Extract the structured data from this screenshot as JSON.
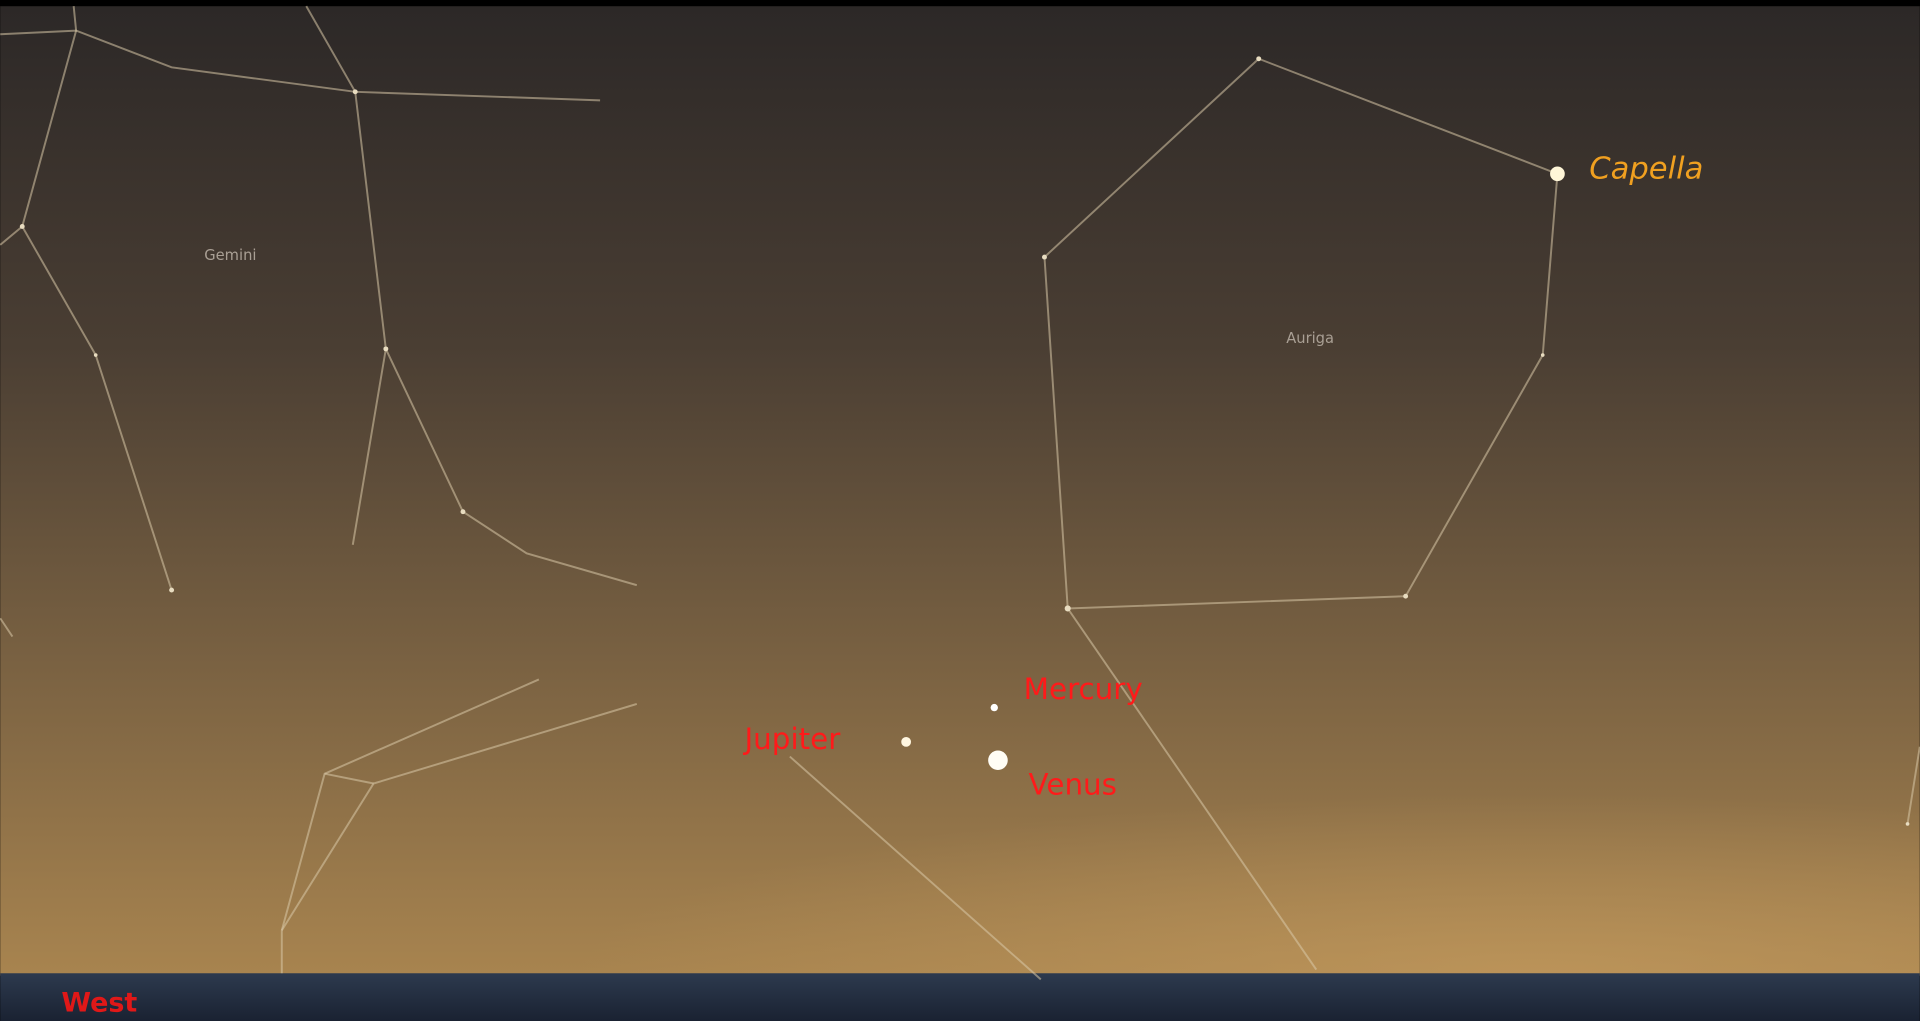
{
  "constellations": [
    "Gemini",
    "Auriga"
  ],
  "objects": [
    "Capella",
    "Mercury",
    "Jupiter",
    "Venus"
  ],
  "direction": "West"
}
